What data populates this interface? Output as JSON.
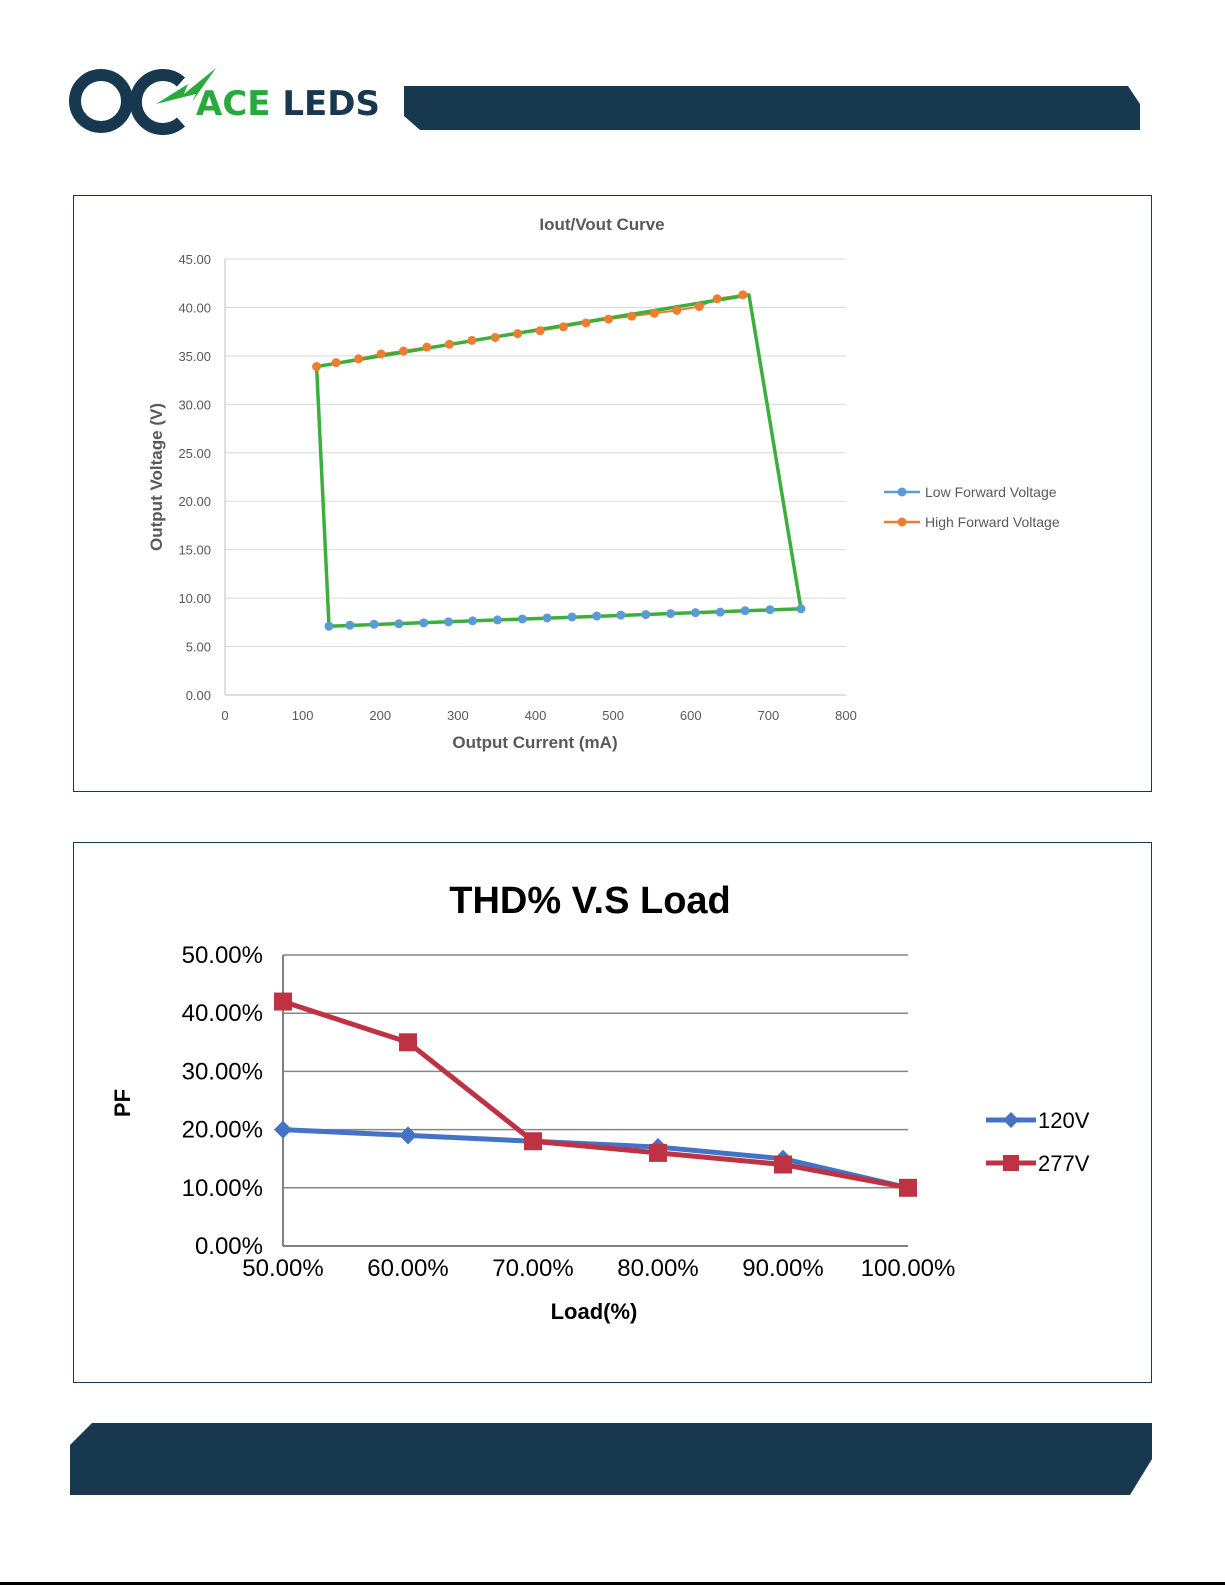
{
  "header": {
    "brand_prefix": "ACE",
    "brand_suffix": "LEDS",
    "brand_color_green": "#29a83c",
    "brand_color_navy": "#17384f",
    "logo_icon": "ac-lightning-logo-icon"
  },
  "charts": {
    "iv": {
      "title": "Iout/Vout Curve",
      "xlabel": "Output Current (mA)",
      "ylabel": "Output Voltage (V)",
      "xticks": [
        "0",
        "100",
        "200",
        "300",
        "400",
        "500",
        "600",
        "700",
        "800"
      ],
      "yticks": [
        "0.00",
        "5.00",
        "10.00",
        "15.00",
        "20.00",
        "25.00",
        "30.00",
        "35.00",
        "40.00",
        "45.00"
      ],
      "legend": [
        "Low Forward Voltage",
        "High Forward Voltage"
      ]
    },
    "thd": {
      "title": "THD% V.S Load",
      "xlabel": "Load(%)",
      "ylabel": "PF",
      "xticks": [
        "50.00%",
        "60.00%",
        "70.00%",
        "80.00%",
        "90.00%",
        "100.00%"
      ],
      "yticks": [
        "0.00%",
        "10.00%",
        "20.00%",
        "30.00%",
        "40.00%",
        "50.00%"
      ],
      "legend": [
        "120V",
        "277V"
      ]
    }
  },
  "chart_data": [
    {
      "type": "scatter",
      "title": "Iout/Vout Curve",
      "xlabel": "Output Current (mA)",
      "ylabel": "Output Voltage (V)",
      "xlim": [
        0,
        800
      ],
      "ylim": [
        0,
        45
      ],
      "grid": true,
      "legend_position": "right",
      "series": [
        {
          "name": "Low Forward Voltage",
          "color": "#5b9bd5",
          "x": [
            134,
            161,
            192,
            224,
            256,
            288,
            319,
            351,
            383,
            415,
            447,
            479,
            510,
            542,
            574,
            606,
            638,
            670,
            702,
            742
          ],
          "y": [
            7.1,
            7.2,
            7.3,
            7.35,
            7.45,
            7.55,
            7.65,
            7.75,
            7.85,
            7.95,
            8.05,
            8.15,
            8.25,
            8.3,
            8.4,
            8.5,
            8.55,
            8.7,
            8.8,
            8.9
          ]
        },
        {
          "name": "High Forward Voltage",
          "color": "#ed7d31",
          "x": [
            118,
            143,
            172,
            201,
            230,
            260,
            289,
            318,
            348,
            377,
            406,
            436,
            465,
            494,
            524,
            553,
            582,
            611,
            634,
            667
          ],
          "y": [
            33.9,
            34.3,
            34.7,
            35.2,
            35.5,
            35.9,
            36.2,
            36.6,
            36.9,
            37.3,
            37.6,
            38.0,
            38.4,
            38.8,
            39.1,
            39.4,
            39.7,
            40.1,
            40.9,
            41.3
          ]
        }
      ],
      "envelope": {
        "color": "#3dae3c",
        "x": [
          118,
          134,
          742,
          675,
          118
        ],
        "y": [
          33.9,
          7.1,
          8.9,
          41.3,
          33.9
        ]
      }
    },
    {
      "type": "line",
      "title": "THD% V.S Load",
      "xlabel": "Load(%)",
      "ylabel": "PF",
      "categories": [
        "50.00%",
        "60.00%",
        "70.00%",
        "80.00%",
        "90.00%",
        "100.00%"
      ],
      "ylim": [
        0,
        50
      ],
      "grid": true,
      "legend_position": "right",
      "series": [
        {
          "name": "120V",
          "color": "#4472c4",
          "marker": "diamond",
          "values": [
            20,
            19,
            18,
            17,
            15,
            10
          ]
        },
        {
          "name": "277V",
          "color": "#be3343",
          "marker": "square",
          "values": [
            42,
            35,
            18,
            16,
            14,
            10
          ]
        }
      ]
    }
  ]
}
